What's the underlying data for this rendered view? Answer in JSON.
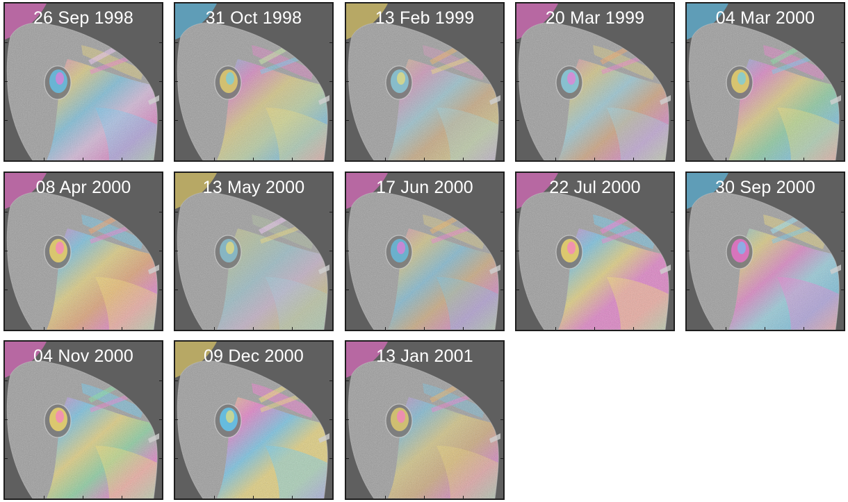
{
  "panels": [
    {
      "date": "26 Sep 1998",
      "fringes": [
        "#ff6fd8",
        "#ffe46a",
        "#5fd0ff",
        "#f7c8ff"
      ],
      "intensity": 0.8
    },
    {
      "date": "31 Oct 1998",
      "fringes": [
        "#5fd0ff",
        "#ff6fd8",
        "#ffe46a",
        "#c9f0a0"
      ],
      "intensity": 0.75
    },
    {
      "date": "13 Feb 1999",
      "fringes": [
        "#ffe46a",
        "#ff8ad2",
        "#8fe7ff",
        "#f3b05a"
      ],
      "intensity": 0.6
    },
    {
      "date": "20 Mar 1999",
      "fringes": [
        "#ff6fd8",
        "#ffe46a",
        "#8fe7ff",
        "#f5a35c"
      ],
      "intensity": 0.7
    },
    {
      "date": "04 Mar 2000",
      "fringes": [
        "#5fd0ff",
        "#ff6fd8",
        "#ffe46a",
        "#7be39c"
      ],
      "intensity": 0.85
    },
    {
      "date": "08 Apr 2000",
      "fringes": [
        "#ff6fd8",
        "#5fd0ff",
        "#ffe46a",
        "#ff9f5a"
      ],
      "intensity": 0.9
    },
    {
      "date": "13 May 2000",
      "fringes": [
        "#ffe46a",
        "#c9f0a0",
        "#8fe7ff",
        "#f7c8ff"
      ],
      "intensity": 0.45
    },
    {
      "date": "17 Jun 2000",
      "fringes": [
        "#ff6fd8",
        "#ffe46a",
        "#5fd0ff",
        "#f3b05a"
      ],
      "intensity": 0.65
    },
    {
      "date": "22 Jul 2000",
      "fringes": [
        "#ff6fd8",
        "#5fd0ff",
        "#ffe46a",
        "#ff6fd8"
      ],
      "intensity": 0.95
    },
    {
      "date": "30 Sep 2000",
      "fringes": [
        "#5fd0ff",
        "#ffe46a",
        "#ff6fd8",
        "#8fe7ff"
      ],
      "intensity": 0.85
    },
    {
      "date": "04 Nov 2000",
      "fringes": [
        "#ff6fd8",
        "#5fd0ff",
        "#ffe46a",
        "#7be39c"
      ],
      "intensity": 0.95
    },
    {
      "date": "09 Dec 2000",
      "fringes": [
        "#ffe46a",
        "#ff6fd8",
        "#5fd0ff",
        "#ffe46a"
      ],
      "intensity": 1.0
    },
    {
      "date": "13 Jan 2001",
      "fringes": [
        "#ff6fd8",
        "#5fd0ff",
        "#ffe46a",
        "#f3b05a"
      ],
      "intensity": 0.7
    }
  ],
  "colors": {
    "background_sea": "#5f5f5f",
    "island_base": "#9a9a9a",
    "crater": "#7a7a7a",
    "frame": "#1c1c1c",
    "label_text": "#ffffff"
  }
}
